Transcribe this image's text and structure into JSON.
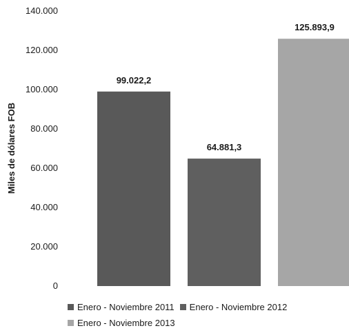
{
  "chart_data": {
    "type": "bar",
    "ylabel": "Miles de dólares FOB",
    "ylim": [
      0,
      140000
    ],
    "yticks": [
      0,
      20000,
      40000,
      60000,
      80000,
      100000,
      120000,
      140000
    ],
    "ytick_labels": [
      "0",
      "20.000",
      "40.000",
      "60.000",
      "80.000",
      "100.000",
      "120.000",
      "140.000"
    ],
    "grid": false,
    "legend_position": "bottom",
    "series": [
      {
        "name": "Enero - Noviembre 2011",
        "value": 99022.2,
        "label": "99.022,2",
        "color": "#595959"
      },
      {
        "name": "Enero - Noviembre 2012",
        "value": 64881.3,
        "label": "64.881,3",
        "color": "#5f5f5f"
      },
      {
        "name": "Enero - Noviembre 2013",
        "value": 125893.9,
        "label": "125.893,9",
        "color": "#a6a6a6"
      }
    ]
  }
}
